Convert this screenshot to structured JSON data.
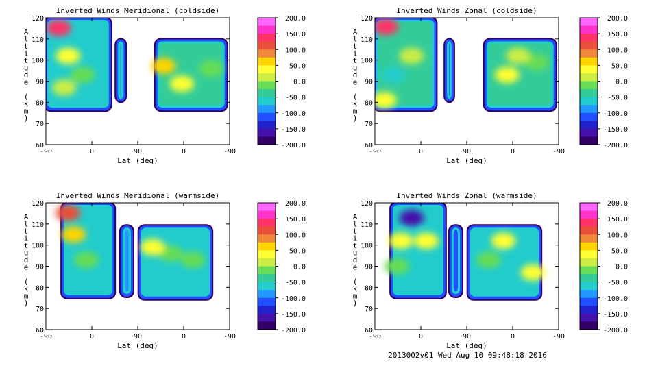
{
  "footer": {
    "stamp": "2013002v01 Wed Aug 10 09:48:18 2016"
  },
  "colors": {
    "axes": "#000000",
    "background": "#ffffff"
  },
  "colorbar": {
    "ticks": [
      "200.0",
      "150.0",
      "100.0",
      "50.0",
      "0.0",
      "-50.0",
      "-100.0",
      "-150.0",
      "-200.0"
    ],
    "colors": [
      "#ff66ff",
      "#ff33cc",
      "#ff3366",
      "#e8503a",
      "#f0883c",
      "#ffd400",
      "#ffff33",
      "#ccee44",
      "#66dd55",
      "#33cc99",
      "#22cccc",
      "#2299ff",
      "#1f4fff",
      "#2222cc",
      "#4411aa",
      "#330066"
    ]
  },
  "chart_data": [
    {
      "type": "heatmap",
      "title": "Inverted Winds Meridional (coldside)",
      "xlabel": "Lat (deg)",
      "ylabel": "Altitude (km)",
      "x_ticks": [
        "-90",
        "0",
        "90",
        "0",
        "-90"
      ],
      "y_ticks": [
        "60",
        "70",
        "80",
        "90",
        "100",
        "110",
        "120"
      ],
      "ylim": [
        60,
        120
      ],
      "zlim": [
        -200,
        200
      ],
      "colorbar_label": "",
      "levels": [
        -200,
        -175,
        -150,
        -125,
        -100,
        -75,
        -50,
        -25,
        0,
        25,
        50,
        75,
        100,
        125,
        150,
        175,
        200
      ]
    },
    {
      "type": "heatmap",
      "title": "Inverted Winds Zonal (coldside)",
      "xlabel": "Lat (deg)",
      "ylabel": "Altitude (km)",
      "x_ticks": [
        "-90",
        "0",
        "90",
        "0",
        "-90"
      ],
      "y_ticks": [
        "60",
        "70",
        "80",
        "90",
        "100",
        "110",
        "120"
      ],
      "ylim": [
        60,
        120
      ],
      "zlim": [
        -200,
        200
      ],
      "colorbar_label": "",
      "levels": [
        -200,
        -175,
        -150,
        -125,
        -100,
        -75,
        -50,
        -25,
        0,
        25,
        50,
        75,
        100,
        125,
        150,
        175,
        200
      ]
    },
    {
      "type": "heatmap",
      "title": "Inverted Winds Meridional (warmside)",
      "xlabel": "Lat (deg)",
      "ylabel": "Altitude (km)",
      "x_ticks": [
        "-90",
        "0",
        "90",
        "0",
        "-90"
      ],
      "y_ticks": [
        "60",
        "70",
        "80",
        "90",
        "100",
        "110",
        "120"
      ],
      "ylim": [
        60,
        120
      ],
      "zlim": [
        -200,
        200
      ],
      "colorbar_label": "",
      "levels": [
        -200,
        -175,
        -150,
        -125,
        -100,
        -75,
        -50,
        -25,
        0,
        25,
        50,
        75,
        100,
        125,
        150,
        175,
        200
      ]
    },
    {
      "type": "heatmap",
      "title": "Inverted Winds Zonal (warmside)",
      "xlabel": "Lat (deg)",
      "ylabel": "Altitude (km)",
      "x_ticks": [
        "-90",
        "0",
        "90",
        "0",
        "-90"
      ],
      "y_ticks": [
        "60",
        "70",
        "80",
        "90",
        "100",
        "110",
        "120"
      ],
      "ylim": [
        60,
        120
      ],
      "zlim": [
        -200,
        200
      ],
      "colorbar_label": "",
      "levels": [
        -200,
        -175,
        -150,
        -125,
        -100,
        -75,
        -50,
        -25,
        0,
        25,
        50,
        75,
        100,
        125,
        150,
        175,
        200
      ]
    }
  ]
}
